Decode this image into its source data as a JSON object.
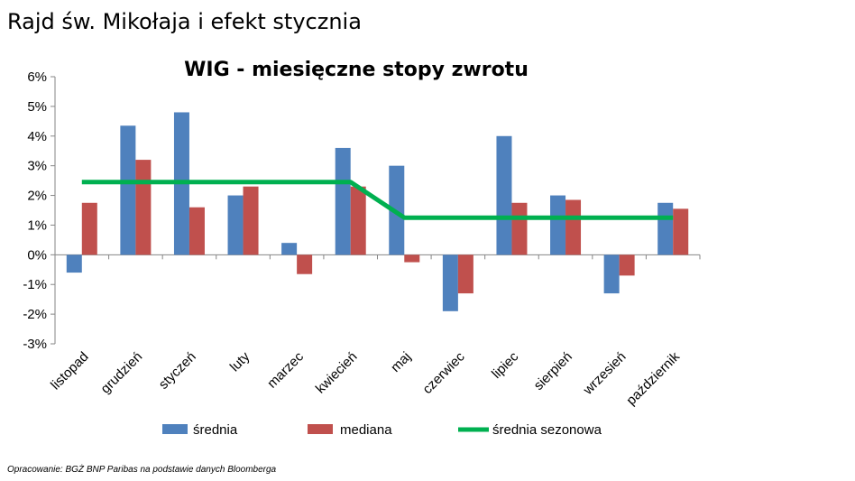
{
  "page": {
    "title": "Rajd św. Mikołaja i efekt stycznia",
    "source": "Opracowanie: BGŻ BNP Paribas na podstawie danych Bloomberga"
  },
  "chart_data": {
    "type": "bar",
    "title": "WIG - miesięczne stopy zwrotu",
    "xlabel": "",
    "ylabel": "",
    "ylim": [
      -3,
      6
    ],
    "ytick_labels": [
      "6%",
      "5%",
      "4%",
      "3%",
      "2%",
      "1%",
      "0%",
      "-1%",
      "-2%",
      "-3%"
    ],
    "grid": false,
    "legend_position": "bottom",
    "categories": [
      "listopad",
      "grudzień",
      "styczeń",
      "luty",
      "marzec",
      "kwiecień",
      "maj",
      "czerwiec",
      "lipiec",
      "sierpień",
      "wrzesień",
      "październik"
    ],
    "series": [
      {
        "name": "średnia",
        "type": "bar",
        "color": "#4F81BD",
        "values": [
          -0.6,
          4.35,
          4.8,
          2.0,
          0.4,
          3.6,
          3.0,
          -1.9,
          4.0,
          2.0,
          -1.3,
          1.75
        ]
      },
      {
        "name": "mediana",
        "type": "bar",
        "color": "#C0504D",
        "values": [
          1.75,
          3.2,
          1.6,
          2.3,
          -0.65,
          2.3,
          -0.25,
          -1.3,
          1.75,
          1.85,
          -0.7,
          1.55
        ]
      },
      {
        "name": "średnia sezonowa",
        "type": "line",
        "color": "#00B050",
        "values": [
          2.45,
          2.45,
          2.45,
          2.45,
          2.45,
          2.45,
          1.25,
          1.25,
          1.25,
          1.25,
          1.25,
          1.25
        ]
      }
    ]
  }
}
